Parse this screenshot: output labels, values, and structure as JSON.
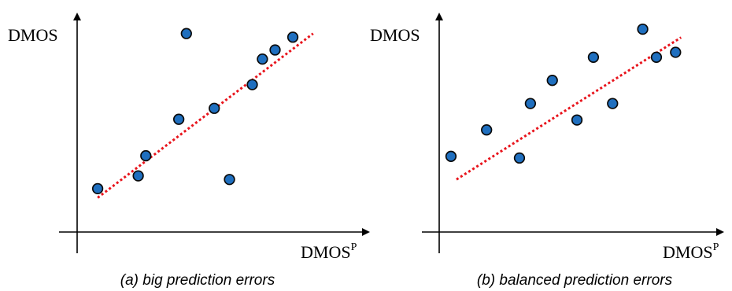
{
  "colors": {
    "point_fill": "#1f6fbf",
    "point_stroke": "#0a0a0a",
    "fit_line": "#e8141c",
    "axis": "#000000"
  },
  "panels": [
    {
      "y_axis_label": "DMOS",
      "x_axis_label": "DMOS",
      "x_axis_superscript": "P",
      "caption": "(a) big prediction errors"
    },
    {
      "y_axis_label": "DMOS",
      "x_axis_label": "DMOS",
      "x_axis_superscript": "P",
      "caption": "(b) balanced prediction errors"
    }
  ],
  "chart_data": [
    {
      "type": "scatter",
      "title": "(a) big prediction errors",
      "xlabel": "DMOS^P",
      "ylabel": "DMOS",
      "grid": false,
      "xlim": [
        0,
        1
      ],
      "ylim": [
        0,
        1
      ],
      "points": [
        {
          "x": 0.05,
          "y": 0.13
        },
        {
          "x": 0.21,
          "y": 0.2
        },
        {
          "x": 0.24,
          "y": 0.31
        },
        {
          "x": 0.37,
          "y": 0.51
        },
        {
          "x": 0.4,
          "y": 0.98
        },
        {
          "x": 0.51,
          "y": 0.57
        },
        {
          "x": 0.57,
          "y": 0.18
        },
        {
          "x": 0.66,
          "y": 0.7
        },
        {
          "x": 0.7,
          "y": 0.84
        },
        {
          "x": 0.75,
          "y": 0.89
        },
        {
          "x": 0.82,
          "y": 0.96
        }
      ],
      "fit_line": {
        "x": [
          0.05,
          0.9
        ],
        "y": [
          0.08,
          0.98
        ]
      }
    },
    {
      "type": "scatter",
      "title": "(b) balanced prediction errors",
      "xlabel": "DMOS^P",
      "ylabel": "DMOS",
      "grid": false,
      "xlim": [
        0,
        1
      ],
      "ylim": [
        0,
        1
      ],
      "points": [
        {
          "x": 0.02,
          "y": 0.22
        },
        {
          "x": 0.15,
          "y": 0.38
        },
        {
          "x": 0.27,
          "y": 0.21
        },
        {
          "x": 0.31,
          "y": 0.54
        },
        {
          "x": 0.39,
          "y": 0.68
        },
        {
          "x": 0.48,
          "y": 0.44
        },
        {
          "x": 0.54,
          "y": 0.82
        },
        {
          "x": 0.61,
          "y": 0.54
        },
        {
          "x": 0.72,
          "y": 0.99
        },
        {
          "x": 0.77,
          "y": 0.82
        },
        {
          "x": 0.84,
          "y": 0.85
        }
      ],
      "fit_line": {
        "x": [
          0.04,
          0.86
        ],
        "y": [
          0.08,
          0.94
        ]
      }
    }
  ]
}
